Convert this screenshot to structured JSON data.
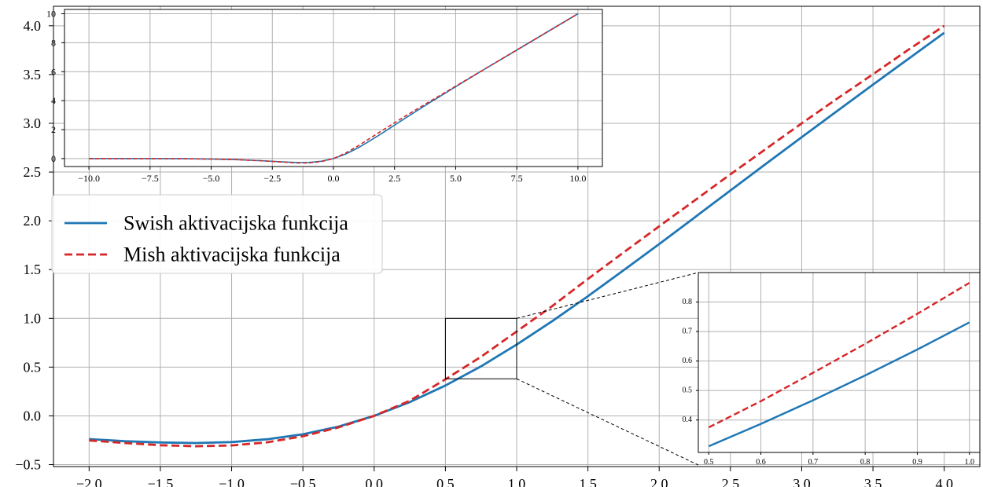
{
  "chart_data": [
    {
      "id": "main",
      "type": "line",
      "title": "",
      "xlabel": "",
      "ylabel": "",
      "xlim": [
        -2.25,
        4.25
      ],
      "ylim": [
        -0.52,
        4.2
      ],
      "xticks": [
        -2.0,
        -1.5,
        -1.0,
        -0.5,
        0.0,
        0.5,
        1.0,
        1.5,
        2.0,
        2.5,
        3.0,
        3.5,
        4.0
      ],
      "xtick_labels": [
        "−2.0",
        "−1.5",
        "−1.0",
        "−0.5",
        "0.0",
        "0.5",
        "1.0",
        "1.5",
        "2.0",
        "2.5",
        "3.0",
        "3.5",
        "4.0"
      ],
      "yticks": [
        -0.5,
        0.0,
        0.5,
        1.0,
        1.5,
        2.0,
        2.5,
        3.0,
        3.5,
        4.0
      ],
      "ytick_labels": [
        "−0.5",
        "0.0",
        "0.5",
        "1.0",
        "1.5",
        "2.0",
        "2.5",
        "3.0",
        "3.5",
        "4.0"
      ],
      "grid": true,
      "legend_position": "upper-left",
      "series": [
        {
          "name": "Swish aktivacijska funkcija",
          "color": "#1f77b4",
          "style": "solid",
          "x": [
            -2.0,
            -1.75,
            -1.5,
            -1.25,
            -1.0,
            -0.75,
            -0.5,
            -0.25,
            0.0,
            0.25,
            0.5,
            0.75,
            1.0,
            1.25,
            1.5,
            1.75,
            2.0,
            2.25,
            2.5,
            2.75,
            3.0,
            3.25,
            3.5,
            3.75,
            4.0
          ],
          "y": [
            -0.238,
            -0.26,
            -0.273,
            -0.278,
            -0.269,
            -0.24,
            -0.189,
            -0.11,
            0.0,
            0.141,
            0.311,
            0.508,
            0.731,
            0.972,
            1.227,
            1.493,
            1.762,
            2.036,
            2.311,
            2.586,
            2.858,
            3.128,
            3.396,
            3.663,
            3.928
          ]
        },
        {
          "name": "Mish aktivacijska funkcija",
          "color": "#d62728",
          "style": "dashed",
          "x": [
            -2.0,
            -1.75,
            -1.5,
            -1.25,
            -1.0,
            -0.75,
            -0.5,
            -0.25,
            0.0,
            0.25,
            0.5,
            0.75,
            1.0,
            1.25,
            1.5,
            1.75,
            2.0,
            2.25,
            2.5,
            2.75,
            3.0,
            3.25,
            3.5,
            3.75,
            4.0
          ],
          "y": [
            -0.252,
            -0.278,
            -0.301,
            -0.311,
            -0.303,
            -0.271,
            -0.209,
            -0.118,
            0.0,
            0.155,
            0.375,
            0.606,
            0.865,
            1.126,
            1.404,
            1.676,
            1.944,
            2.21,
            2.477,
            2.739,
            3.0,
            3.254,
            3.503,
            3.756,
            4.0
          ]
        }
      ]
    },
    {
      "id": "inset-full",
      "type": "line",
      "xlim": [
        -11.0,
        11.0
      ],
      "ylim": [
        -0.55,
        10.3
      ],
      "xticks": [
        -10.0,
        -7.5,
        -5.0,
        -2.5,
        0.0,
        2.5,
        5.0,
        7.5,
        10.0
      ],
      "xtick_labels": [
        "−10.0",
        "−7.5",
        "−5.0",
        "−2.5",
        "0.0",
        "2.5",
        "5.0",
        "7.5",
        "10.0"
      ],
      "yticks": [
        0,
        2,
        4,
        6,
        8,
        10
      ],
      "ytick_labels": [
        "0",
        "2",
        "4",
        "6",
        "8",
        "10"
      ],
      "grid": true,
      "series": [
        {
          "name": "Swish",
          "color": "#1f77b4",
          "style": "solid",
          "x": [
            -10.0,
            -8.0,
            -6.0,
            -5.0,
            -4.0,
            -3.0,
            -2.0,
            -1.5,
            -1.0,
            -0.5,
            0.0,
            0.5,
            1.0,
            1.5,
            2.0,
            3.0,
            4.0,
            5.0,
            6.0,
            8.0,
            10.0
          ],
          "y": [
            0.0,
            -0.003,
            -0.015,
            -0.033,
            -0.072,
            -0.142,
            -0.238,
            -0.273,
            -0.269,
            -0.189,
            0.0,
            0.311,
            0.731,
            1.227,
            1.762,
            2.858,
            3.928,
            4.967,
            5.985,
            7.997,
            10.0
          ]
        },
        {
          "name": "Mish",
          "color": "#d62728",
          "style": "dashed",
          "x": [
            -10.0,
            -8.0,
            -6.0,
            -5.0,
            -4.0,
            -3.0,
            -2.0,
            -1.5,
            -1.0,
            -0.5,
            0.0,
            0.5,
            1.0,
            1.5,
            2.0,
            3.0,
            4.0,
            5.0,
            6.0,
            8.0,
            10.0
          ],
          "y": [
            0.0,
            -0.003,
            -0.015,
            -0.034,
            -0.073,
            -0.146,
            -0.252,
            -0.301,
            -0.303,
            -0.209,
            0.0,
            0.375,
            0.865,
            1.404,
            1.944,
            3.0,
            4.0,
            5.0,
            6.0,
            8.0,
            10.0
          ]
        }
      ]
    },
    {
      "id": "inset-zoom",
      "type": "line",
      "xlim": [
        0.48,
        1.02
      ],
      "ylim": [
        0.29,
        0.9
      ],
      "xticks": [
        0.5,
        0.6,
        0.7,
        0.8,
        0.9,
        1.0
      ],
      "xtick_labels": [
        "0.5",
        "0.6",
        "0.7",
        "0.8",
        "0.9",
        "1.0"
      ],
      "yticks": [
        0.4,
        0.5,
        0.6,
        0.7,
        0.8
      ],
      "ytick_labels": [
        "0.4",
        "0.5",
        "0.6",
        "0.7",
        "0.8"
      ],
      "grid": true,
      "series": [
        {
          "name": "Swish",
          "color": "#1f77b4",
          "style": "solid",
          "x": [
            0.5,
            0.6,
            0.7,
            0.8,
            0.9,
            1.0
          ],
          "y": [
            0.311,
            0.387,
            0.467,
            0.551,
            0.639,
            0.731
          ]
        },
        {
          "name": "Mish",
          "color": "#d62728",
          "style": "dashed",
          "x": [
            0.5,
            0.6,
            0.7,
            0.8,
            0.9,
            1.0
          ],
          "y": [
            0.375,
            0.464,
            0.56,
            0.658,
            0.76,
            0.865
          ]
        }
      ]
    }
  ],
  "zoom_region": {
    "x": [
      0.5,
      1.0
    ],
    "y": [
      0.38,
      1.0
    ]
  }
}
